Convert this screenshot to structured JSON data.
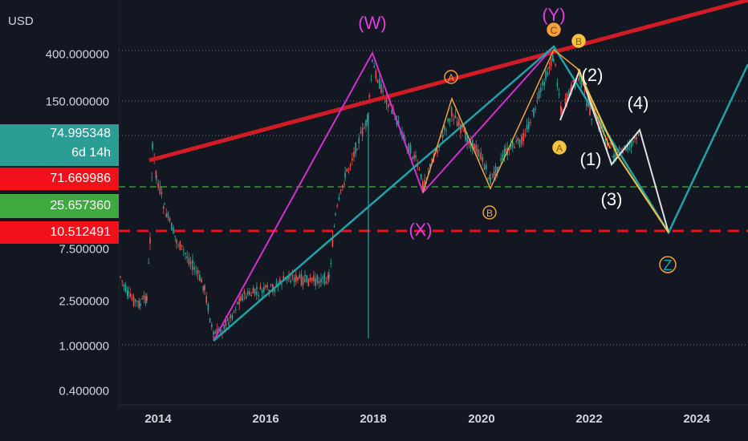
{
  "header": {
    "currency": "USD"
  },
  "price_axis": {
    "ticks": [
      "400.000000",
      "150.000000",
      "7.500000",
      "2.500000",
      "1.000000",
      "0.400000"
    ]
  },
  "price_tags": {
    "current_price": "74.995348",
    "countdown": "6d 14h",
    "level_1": "71.669986",
    "level_2": "25.657360",
    "level_3": "10.512491"
  },
  "time_axis": {
    "ticks": [
      "2014",
      "2016",
      "2018",
      "2020",
      "2022",
      "2024"
    ]
  },
  "colors": {
    "background": "#131722",
    "trendline": "#d11c26",
    "wave_wxy": "#d42ed0",
    "wave_teal": "#1fa3a8",
    "wave_orange": "#f4a13a",
    "impulse_white": "#ffffff",
    "impulse_yellow": "#f6c343",
    "support_red": "#f2111a",
    "support_green": "#3f8f3f",
    "candle_up": "#26a69a",
    "candle_down": "#ef5350"
  },
  "chart_data": {
    "type": "candlestick",
    "symbol_currency": "USD",
    "y_scale": "log",
    "x_range": [
      "2013",
      "2025"
    ],
    "horizontal_levels": [
      {
        "value": 74.995348,
        "style": "dotted",
        "label": "74.995348"
      },
      {
        "value": 25.65736,
        "style": "dashed-green",
        "label": "25.657360"
      },
      {
        "value": 10.512491,
        "style": "dashed-red",
        "label": "10.512491"
      }
    ],
    "wave_labels": {
      "wxy": [
        "(W)",
        "(X)",
        "(Y)"
      ],
      "abc_circled": [
        "A",
        "B",
        "C",
        "A",
        "B"
      ],
      "impulse": [
        "(1)",
        "(2)",
        "(3)",
        "(4)"
      ],
      "target": "Z"
    }
  }
}
